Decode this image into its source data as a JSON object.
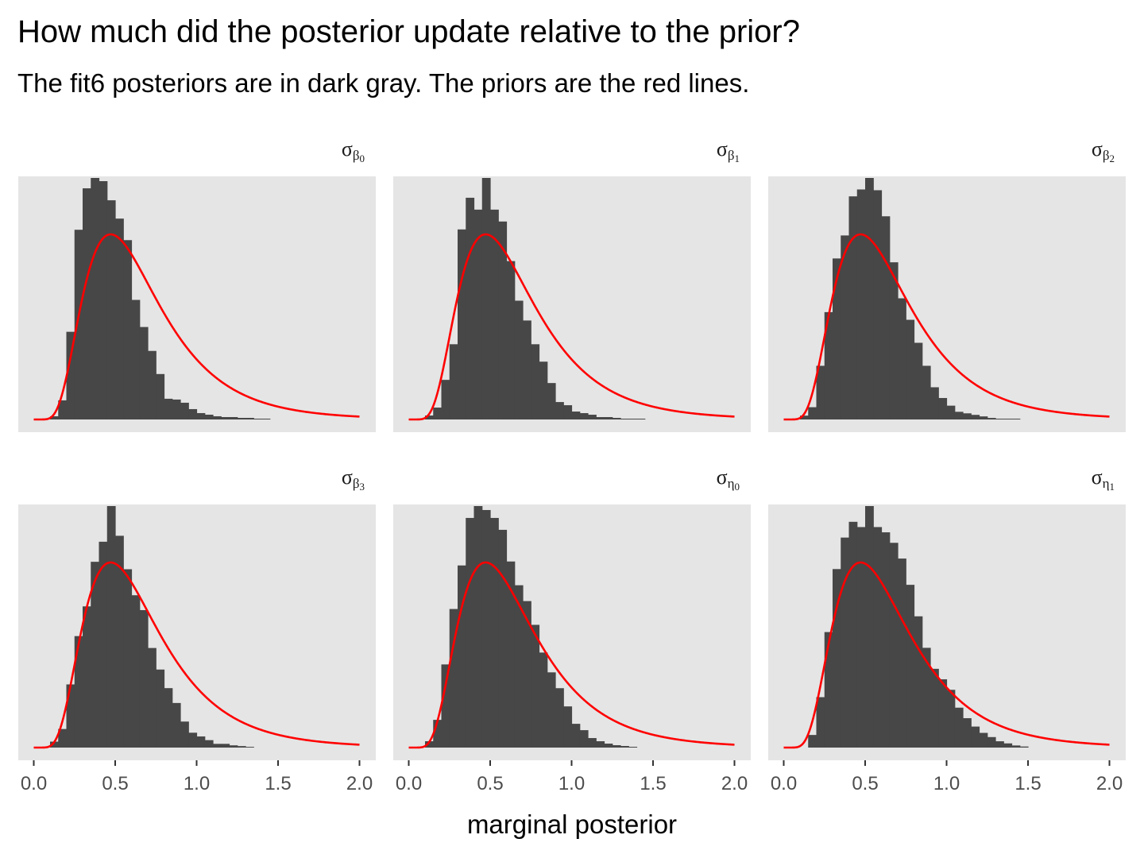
{
  "title": "How much did the posterior update relative to the prior?",
  "subtitle": "The fit6 posteriors are in dark gray. The priors are the red lines.",
  "colors": {
    "panel_bg": "#e5e5e5",
    "bars": "#474747",
    "prior_line": "#ff0000",
    "tick_text": "#4d4d4d"
  },
  "chart_data": {
    "type": "histogram",
    "xlabel": "marginal posterior",
    "xlim": [
      0,
      2
    ],
    "x_ticks": [
      0.0,
      0.5,
      1.0,
      1.5,
      2.0
    ],
    "x_tick_labels": [
      "0.0",
      "0.5",
      "1.0",
      "1.5",
      "2.0"
    ],
    "y_axis": "free scale per panel, not shown",
    "bin_width": 0.05,
    "prior": {
      "type": "lognormal",
      "meanlog": -0.5,
      "sdlog": 0.5,
      "range": [
        0,
        2
      ]
    },
    "panels": [
      {
        "greek": "σ",
        "sub": "β",
        "subsub": "0",
        "bin_start": 0.1,
        "counts": [
          4,
          24,
          110,
          238,
          290,
          303,
          299,
          275,
          252,
          225,
          150,
          116,
          86,
          57,
          26,
          25,
          21,
          13,
          8,
          6,
          4,
          3,
          3,
          2,
          2,
          1,
          1
        ]
      },
      {
        "greek": "σ",
        "sub": "β",
        "subsub": "1",
        "bin_start": 0.1,
        "counts": [
          5,
          15,
          50,
          95,
          240,
          280,
          265,
          305,
          265,
          250,
          200,
          150,
          125,
          95,
          73,
          46,
          22,
          18,
          10,
          8,
          6,
          3,
          3,
          2,
          1,
          1,
          1
        ]
      },
      {
        "greek": "σ",
        "sub": "β",
        "subsub": "2",
        "bin_start": 0.1,
        "counts": [
          5,
          16,
          70,
          140,
          210,
          240,
          291,
          300,
          315,
          299,
          265,
          205,
          158,
          130,
          100,
          70,
          42,
          28,
          18,
          10,
          8,
          6,
          4,
          2,
          1,
          1,
          1
        ]
      },
      {
        "greek": "σ",
        "sub": "β",
        "subsub": "3",
        "bin_start": 0.1,
        "counts": [
          8,
          25,
          85,
          150,
          190,
          250,
          277,
          325,
          285,
          240,
          205,
          185,
          134,
          105,
          80,
          60,
          35,
          20,
          15,
          10,
          5,
          5,
          3,
          2,
          1
        ]
      },
      {
        "greek": "σ",
        "sub": "η",
        "subsub": "0",
        "bin_start": 0.1,
        "counts": [
          8,
          35,
          105,
          175,
          230,
          290,
          305,
          300,
          290,
          275,
          235,
          205,
          185,
          155,
          120,
          95,
          75,
          52,
          30,
          22,
          12,
          8,
          5,
          3,
          2,
          1
        ]
      },
      {
        "greek": "σ",
        "sub": "η",
        "subsub": "1",
        "bin_start": 0.15,
        "counts": [
          12,
          48,
          110,
          170,
          200,
          215,
          210,
          230,
          210,
          205,
          195,
          180,
          155,
          125,
          95,
          75,
          65,
          55,
          38,
          28,
          20,
          14,
          10,
          6,
          4,
          2,
          1
        ]
      }
    ]
  }
}
